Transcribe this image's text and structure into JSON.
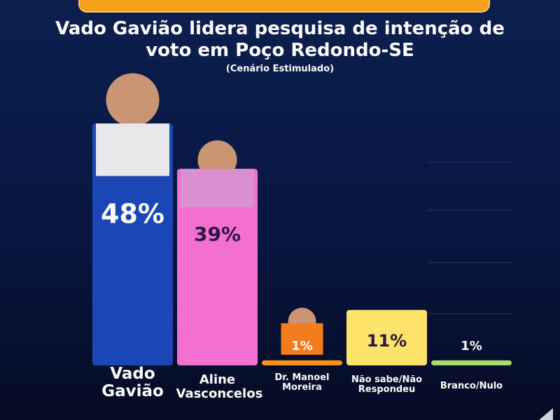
{
  "chart_data": {
    "type": "bar",
    "title": "Vado Gavião lidera pesquisa de intenção de voto em Poço Redondo-SE",
    "subtitle": "(Cenário Estimulado)",
    "categories": [
      "Vado Gavião",
      "Aline Vasconcelos",
      "Dr. Manoel Moreira",
      "Não sabe/Não Respondeu",
      "Branco/Nulo"
    ],
    "values": [
      48,
      39,
      1,
      11,
      1
    ],
    "value_labels": [
      "48%",
      "39%",
      "1%",
      "11%",
      "1%"
    ],
    "colors": [
      "#1b47b6",
      "#f46fd2",
      "#f7941d",
      "#fde36a",
      "#a9d86c"
    ],
    "value_label_colors": [
      "#ffffff",
      "#2b1740",
      "#ffffff",
      "#2b1740",
      "#ffffff"
    ]
  }
}
